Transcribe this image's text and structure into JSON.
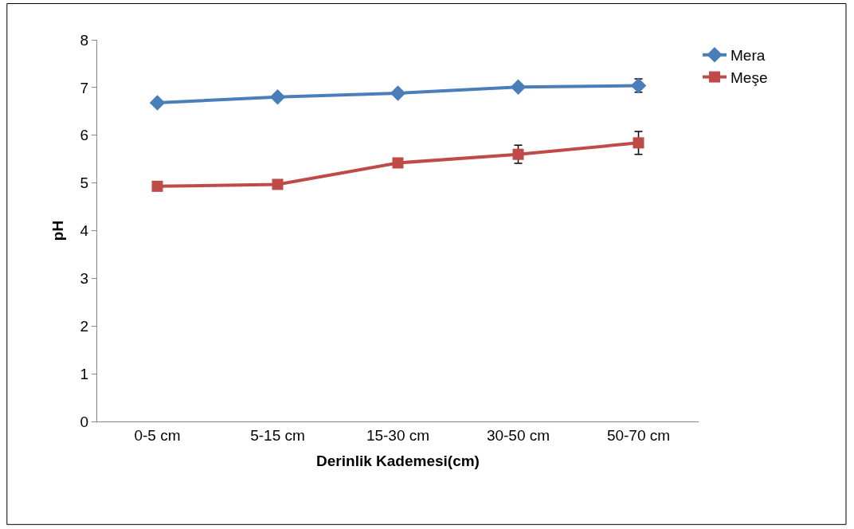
{
  "chart_data": {
    "type": "line",
    "xlabel": "Derinlik Kademesi(cm)",
    "ylabel": "pH",
    "categories": [
      "0-5 cm",
      "5-15 cm",
      "15-30 cm",
      "30-50 cm",
      "50-70 cm"
    ],
    "series": [
      {
        "name": "Mera",
        "color": "#4a7ebb",
        "marker": "diamond",
        "values": [
          6.68,
          6.8,
          6.88,
          7.01,
          7.04
        ],
        "errors": [
          null,
          null,
          null,
          null,
          0.14
        ]
      },
      {
        "name": "Meşe",
        "color": "#be4b48",
        "marker": "square",
        "values": [
          4.93,
          4.97,
          5.42,
          5.6,
          5.84
        ],
        "errors": [
          null,
          null,
          null,
          0.19,
          0.24
        ]
      }
    ],
    "ylim": [
      0,
      8
    ],
    "yticks": [
      0,
      1,
      2,
      3,
      4,
      5,
      6,
      7,
      8
    ],
    "legend": "top right"
  }
}
